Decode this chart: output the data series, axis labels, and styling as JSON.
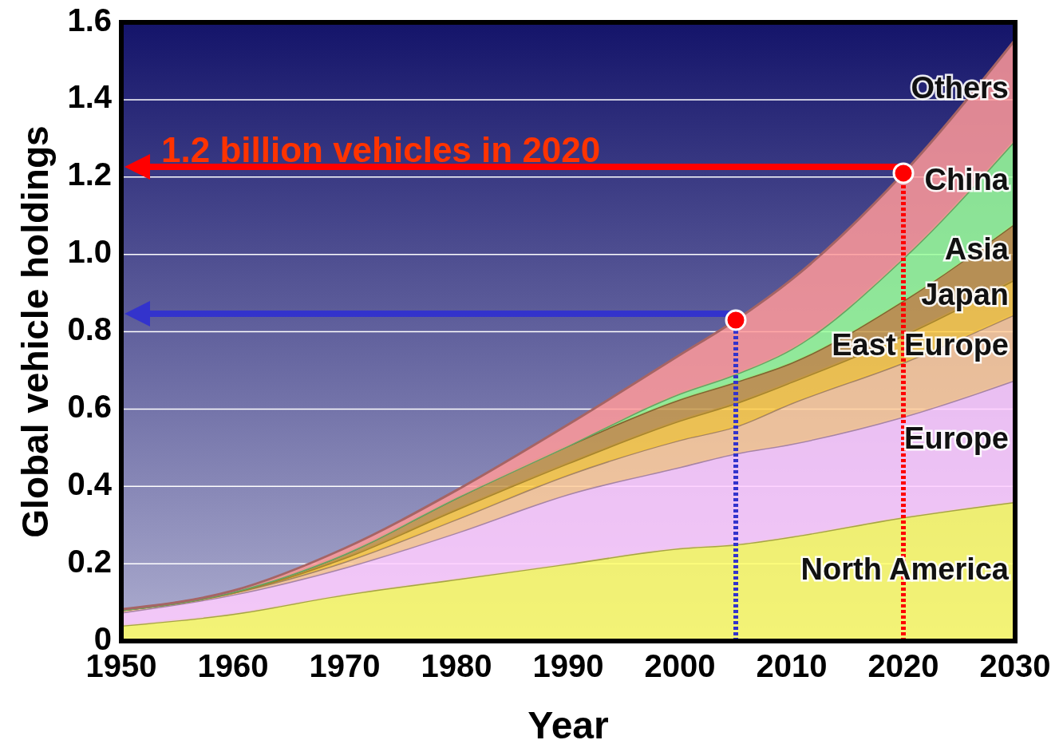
{
  "chart_data": {
    "type": "area",
    "stacked": true,
    "xlabel": "Year",
    "ylabel": "Global vehicle holdings",
    "x": [
      1950,
      1960,
      1970,
      1980,
      1990,
      2000,
      2005,
      2010,
      2020,
      2030
    ],
    "xlim": [
      1950,
      2030
    ],
    "xticks": [
      1950,
      1960,
      1970,
      1980,
      1990,
      2000,
      2010,
      2020,
      2030
    ],
    "ylim": [
      0,
      1.6
    ],
    "yticks": [
      0,
      0.2,
      0.4,
      0.6,
      0.8,
      {
        "value": 1,
        "label": "1.0"
      },
      1.2,
      1.4,
      1.6
    ],
    "grid": "y",
    "series": [
      {
        "name": "North America",
        "color": "#ffff66",
        "values": [
          0.04,
          0.07,
          0.12,
          0.16,
          0.2,
          0.24,
          0.25,
          0.27,
          0.32,
          0.36
        ]
      },
      {
        "name": "Europe",
        "color": "#ffccff",
        "values": [
          0.034,
          0.05,
          0.07,
          0.12,
          0.18,
          0.21,
          0.235,
          0.24,
          0.26,
          0.315
        ]
      },
      {
        "name": "East Europe",
        "color": "#ffcc99",
        "values": [
          0.006,
          0.005,
          0.015,
          0.035,
          0.05,
          0.07,
          0.07,
          0.105,
          0.14,
          0.17
        ]
      },
      {
        "name": "Japan",
        "color": "#ffcc44",
        "values": [
          0,
          0,
          0.01,
          0.025,
          0.03,
          0.05,
          0.06,
          0.055,
          0.07,
          0.09
        ]
      },
      {
        "name": "Asia",
        "color": "#c89a4a",
        "values": [
          0,
          0.002,
          0.01,
          0.03,
          0.045,
          0.055,
          0.055,
          0.05,
          0.09,
          0.145
        ]
      },
      {
        "name": "China",
        "color": "#99ff99",
        "values": [
          0,
          0,
          0,
          0,
          0,
          0.015,
          0.02,
          0.035,
          0.11,
          0.215
        ]
      },
      {
        "name": "Others",
        "color": "#ff9999",
        "values": [
          0.002,
          0.003,
          0.015,
          0.02,
          0.055,
          0.1,
          0.14,
          0.18,
          0.22,
          0.26
        ]
      },
      {
        "type": "scatter",
        "marker": "circle",
        "color": "#ff0000",
        "x": [
          2005,
          2020
        ],
        "values": [
          0.83,
          1.21
        ]
      }
    ],
    "ref_lines": [
      {
        "axis": "x",
        "value": 2005,
        "color": "#3333cc",
        "line_style": "dotted"
      },
      {
        "axis": "x",
        "value": 2020,
        "color": "#ff0000",
        "line_style": "dotted"
      }
    ],
    "annotations": [
      "1.2 billion vehicles in 2020"
    ]
  }
}
